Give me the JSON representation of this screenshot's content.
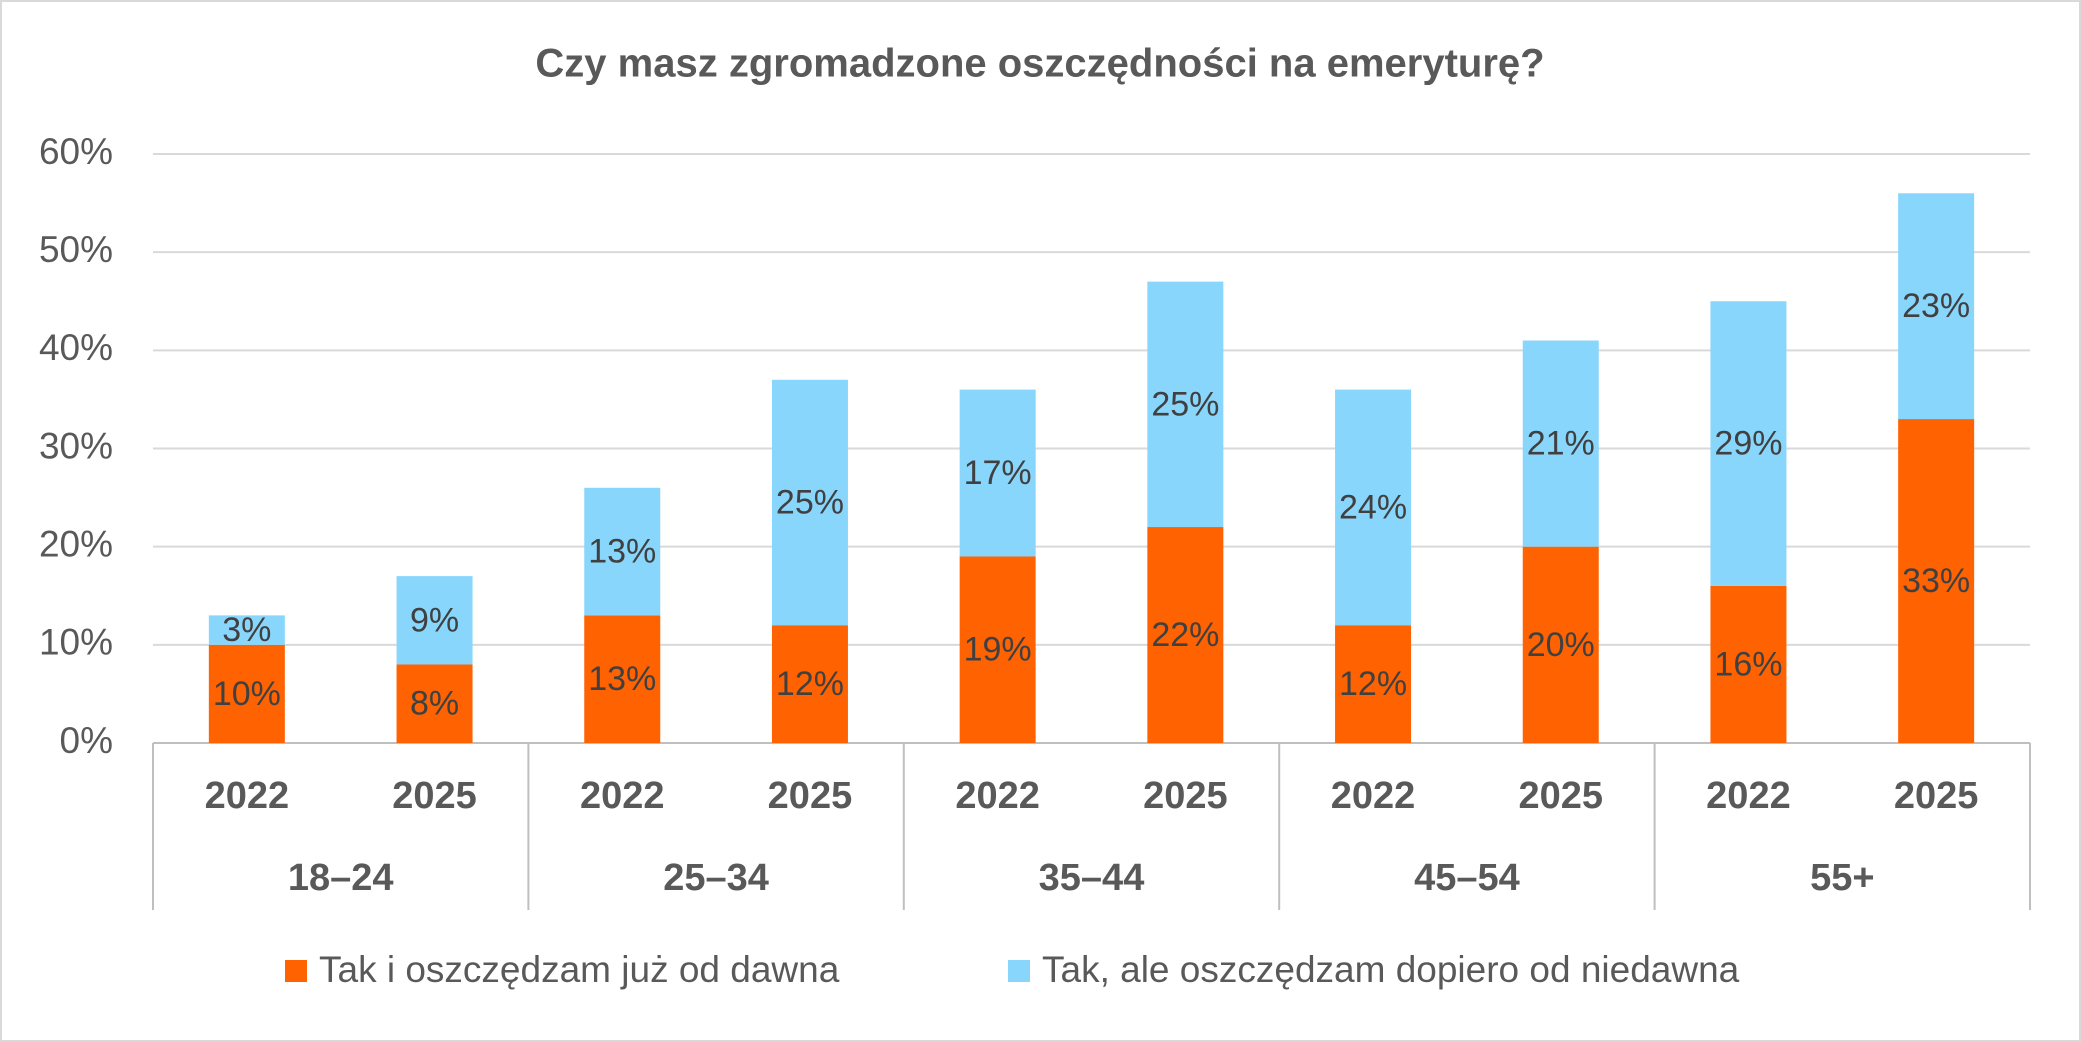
{
  "chart_data": {
    "type": "stacked_bar",
    "title": "Czy masz zgromadzone oszczędności na emeryturę?",
    "categories": [
      "2022",
      "2025",
      "2022",
      "2025",
      "2022",
      "2025",
      "2022",
      "2025",
      "2022",
      "2025"
    ],
    "groups": [
      "18–24",
      "25–34",
      "35–44",
      "45–54",
      "55+"
    ],
    "series": [
      {
        "name": "Tak i oszczędzam już od dawna",
        "color": "#FF6200",
        "values": [
          10,
          8,
          13,
          12,
          19,
          22,
          12,
          20,
          16,
          33
        ],
        "value_labels": [
          "10%",
          "8%",
          "13%",
          "12%",
          "19%",
          "22%",
          "12%",
          "20%",
          "16%",
          "33%"
        ]
      },
      {
        "name": "Tak, ale oszczędzam dopiero od niedawna",
        "color": "#89D6FD",
        "values": [
          3,
          9,
          13,
          25,
          17,
          25,
          24,
          21,
          29,
          23
        ],
        "value_labels": [
          "3%",
          "9%",
          "13%",
          "25%",
          "17%",
          "25%",
          "24%",
          "21%",
          "29%",
          "23%"
        ]
      }
    ],
    "ylim": [
      0,
      60
    ],
    "yticks": [
      {
        "value": 0,
        "label": "0%"
      },
      {
        "value": 10,
        "label": "10%"
      },
      {
        "value": 20,
        "label": "20%"
      },
      {
        "value": 30,
        "label": "30%"
      },
      {
        "value": 40,
        "label": "40%"
      },
      {
        "value": 50,
        "label": "50%"
      },
      {
        "value": 60,
        "label": "60%"
      }
    ],
    "grid": true
  }
}
